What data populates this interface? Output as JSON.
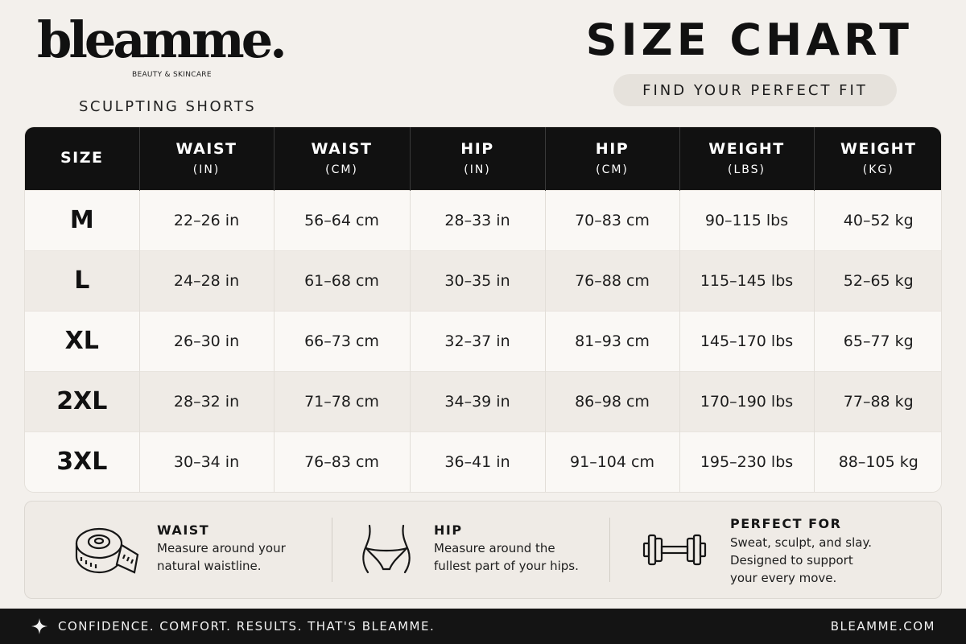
{
  "brand": {
    "logo": "bleamme.",
    "tagline": "BEAUTY & SKINCARE",
    "product": "SCULPTING SHORTS"
  },
  "header": {
    "title": "SIZE CHART",
    "subtitle": "FIND YOUR PERFECT FIT"
  },
  "table": {
    "columns": [
      {
        "label": "SIZE",
        "unit": ""
      },
      {
        "label": "WAIST",
        "unit": "(IN)"
      },
      {
        "label": "WAIST",
        "unit": "(CM)"
      },
      {
        "label": "HIP",
        "unit": "(IN)"
      },
      {
        "label": "HIP",
        "unit": "(CM)"
      },
      {
        "label": "WEIGHT",
        "unit": "(LBS)"
      },
      {
        "label": "WEIGHT",
        "unit": "(KG)"
      }
    ],
    "rows": [
      [
        "M",
        "22–26 in",
        "56–64 cm",
        "28–33 in",
        "70–83 cm",
        "90–115 lbs",
        "40–52 kg"
      ],
      [
        "L",
        "24–28 in",
        "61–68 cm",
        "30–35 in",
        "76–88 cm",
        "115–145 lbs",
        "52–65 kg"
      ],
      [
        "XL",
        "26–30 in",
        "66–73 cm",
        "32–37 in",
        "81–93 cm",
        "145–170 lbs",
        "65–77 kg"
      ],
      [
        "2XL",
        "28–32 in",
        "71–78 cm",
        "34–39 in",
        "86–98 cm",
        "170–190 lbs",
        "77–88 kg"
      ],
      [
        "3XL",
        "30–34 in",
        "76–83 cm",
        "36–41 in",
        "91–104 cm",
        "195–230 lbs",
        "88–105 kg"
      ]
    ]
  },
  "info": {
    "waist": {
      "icon": "measuring-tape-icon",
      "heading": "WAIST",
      "lines": [
        "Measure around your",
        "natural waistline."
      ]
    },
    "hip": {
      "icon": "hips-icon",
      "heading": "HIP",
      "lines": [
        "Measure around the",
        "fullest part of your hips."
      ]
    },
    "perfect_for": {
      "icon": "dumbbell-icon",
      "heading": "PERFECT FOR",
      "lines": [
        "Sweat, sculpt, and slay.",
        "Designed to support",
        "your every move."
      ]
    }
  },
  "footer": {
    "icon": "sparkle-icon",
    "slogan": "CONFIDENCE. COMFORT. RESULTS. THAT'S BLEAMME.",
    "website": "BLEAMME.COM"
  },
  "colors": {
    "background": "#f3f0ec",
    "header_row": "#111111",
    "alt_row": "#efebe6",
    "footer": "#141414",
    "pill": "#e6e2dc"
  }
}
